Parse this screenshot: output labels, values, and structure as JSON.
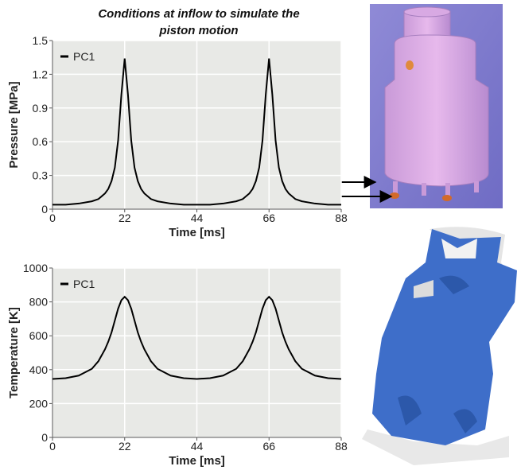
{
  "chart_data": [
    {
      "type": "line",
      "title": "Conditions at inflow to simulate the piston motion",
      "xlabel": "Time [ms]",
      "ylabel": "Pressure [MPa]",
      "x": [
        0,
        4,
        8,
        12,
        14,
        16,
        17,
        18,
        19,
        20,
        21,
        22,
        23,
        24,
        25,
        26,
        27,
        28,
        30,
        32,
        36,
        40,
        44,
        48,
        52,
        56,
        58,
        60,
        61,
        62,
        63,
        64,
        65,
        66,
        67,
        68,
        69,
        70,
        71,
        72,
        74,
        76,
        80,
        84,
        88
      ],
      "series": [
        {
          "name": "PC1",
          "color": "#000000",
          "values": [
            0.04,
            0.04,
            0.05,
            0.07,
            0.09,
            0.14,
            0.18,
            0.25,
            0.37,
            0.61,
            1.02,
            1.34,
            1.02,
            0.61,
            0.37,
            0.25,
            0.18,
            0.14,
            0.09,
            0.07,
            0.05,
            0.04,
            0.04,
            0.04,
            0.05,
            0.07,
            0.09,
            0.14,
            0.18,
            0.25,
            0.37,
            0.61,
            1.02,
            1.34,
            1.02,
            0.61,
            0.37,
            0.25,
            0.18,
            0.14,
            0.09,
            0.07,
            0.05,
            0.04,
            0.04
          ]
        }
      ],
      "xlim": [
        0,
        88
      ],
      "xticks": [
        0,
        22,
        44,
        66,
        88
      ],
      "ylim": [
        0,
        1.5
      ],
      "yticks": [
        0,
        0.3,
        0.6,
        0.9,
        1.2,
        1.5
      ],
      "grid": true,
      "legend": "upper left"
    },
    {
      "type": "line",
      "xlabel": "Time [ms]",
      "ylabel": "Temperature [K]",
      "x": [
        0,
        4,
        8,
        12,
        14,
        16,
        17,
        18,
        19,
        20,
        21,
        22,
        23,
        24,
        25,
        26,
        27,
        28,
        30,
        32,
        36,
        40,
        44,
        48,
        52,
        56,
        58,
        60,
        61,
        62,
        63,
        64,
        65,
        66,
        67,
        68,
        69,
        70,
        71,
        72,
        74,
        76,
        80,
        84,
        88
      ],
      "series": [
        {
          "name": "PC1",
          "color": "#000000",
          "values": [
            345,
            350,
            365,
            405,
            450,
            520,
            565,
            620,
            690,
            760,
            810,
            830,
            810,
            760,
            690,
            620,
            565,
            520,
            450,
            405,
            365,
            350,
            345,
            350,
            365,
            405,
            450,
            520,
            565,
            620,
            690,
            760,
            810,
            830,
            810,
            760,
            690,
            620,
            565,
            520,
            450,
            405,
            365,
            350,
            345
          ]
        }
      ],
      "xlim": [
        0,
        88
      ],
      "xticks": [
        0,
        22,
        44,
        66,
        88
      ],
      "ylim": [
        0,
        1000
      ],
      "yticks": [
        0,
        200,
        400,
        600,
        800,
        1000
      ],
      "grid": true,
      "legend": "upper left"
    }
  ]
}
